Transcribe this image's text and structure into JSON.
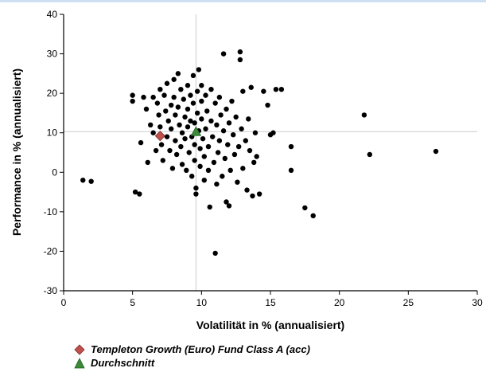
{
  "chart_data": {
    "type": "scatter",
    "title": "",
    "xlabel": "Volatilität in % (annualisiert)",
    "ylabel": "Performance in % (annualisiert)",
    "xlim": [
      0,
      30
    ],
    "ylim": [
      -30,
      40
    ],
    "xticks": [
      0,
      5,
      10,
      15,
      20,
      25,
      30
    ],
    "yticks": [
      -30,
      -20,
      -10,
      0,
      10,
      20,
      30,
      40
    ],
    "xtick_labels": [
      "0",
      "5",
      "10",
      "15",
      "20",
      "25",
      "30"
    ],
    "ytick_labels": [
      "-30",
      "-20",
      "-10",
      "0",
      "10",
      "20",
      "30",
      "40"
    ],
    "grid": false,
    "reference_lines": {
      "x": 9.6,
      "y": 10.3
    },
    "legend_position": "bottom-left",
    "colors": {
      "points": "#000000",
      "fund": "#c0504d",
      "average": "#3a8a3a",
      "reference_line": "#cccccc"
    },
    "series": [
      {
        "name": "",
        "points": [
          [
            1.4,
            -2.0
          ],
          [
            2.0,
            -2.3
          ],
          [
            5.0,
            18.0
          ],
          [
            5.0,
            19.5
          ],
          [
            5.2,
            -5.0
          ],
          [
            5.5,
            -5.5
          ],
          [
            5.6,
            7.5
          ],
          [
            5.8,
            19.0
          ],
          [
            6.0,
            16.0
          ],
          [
            6.1,
            2.5
          ],
          [
            6.3,
            12.0
          ],
          [
            6.5,
            19.0
          ],
          [
            6.5,
            10.0
          ],
          [
            6.7,
            5.5
          ],
          [
            6.8,
            17.5
          ],
          [
            6.9,
            14.5
          ],
          [
            7.0,
            21.0
          ],
          [
            7.0,
            11.5
          ],
          [
            7.1,
            7.0
          ],
          [
            7.2,
            3.0
          ],
          [
            7.3,
            19.5
          ],
          [
            7.4,
            15.5
          ],
          [
            7.5,
            22.5
          ],
          [
            7.5,
            9.0
          ],
          [
            7.6,
            13.0
          ],
          [
            7.7,
            5.5
          ],
          [
            7.8,
            17.0
          ],
          [
            7.8,
            11.0
          ],
          [
            7.9,
            1.0
          ],
          [
            8.0,
            23.5
          ],
          [
            8.0,
            19.0
          ],
          [
            8.1,
            14.5
          ],
          [
            8.1,
            8.0
          ],
          [
            8.2,
            4.5
          ],
          [
            8.3,
            25.0
          ],
          [
            8.3,
            16.5
          ],
          [
            8.4,
            12.0
          ],
          [
            8.5,
            21.0
          ],
          [
            8.5,
            6.5
          ],
          [
            8.6,
            10.0
          ],
          [
            8.6,
            2.0
          ],
          [
            8.7,
            18.5
          ],
          [
            8.8,
            14.0
          ],
          [
            8.8,
            8.5
          ],
          [
            8.9,
            0.5
          ],
          [
            9.0,
            22.0
          ],
          [
            9.0,
            16.0
          ],
          [
            9.0,
            11.5
          ],
          [
            9.1,
            5.0
          ],
          [
            9.2,
            19.5
          ],
          [
            9.2,
            13.0
          ],
          [
            9.3,
            9.0
          ],
          [
            9.3,
            -1.0
          ],
          [
            9.4,
            24.5
          ],
          [
            9.4,
            17.5
          ],
          [
            9.5,
            12.5
          ],
          [
            9.5,
            7.0
          ],
          [
            9.5,
            3.0
          ],
          [
            9.6,
            -4.0
          ],
          [
            9.6,
            -5.5
          ],
          [
            9.7,
            20.5
          ],
          [
            9.7,
            15.0
          ],
          [
            9.8,
            10.5
          ],
          [
            9.8,
            26.0
          ],
          [
            9.9,
            6.0
          ],
          [
            9.9,
            1.5
          ],
          [
            10.0,
            22.0
          ],
          [
            10.0,
            18.0
          ],
          [
            10.0,
            13.5
          ],
          [
            10.1,
            8.5
          ],
          [
            10.2,
            4.0
          ],
          [
            10.2,
            -2.0
          ],
          [
            10.3,
            19.5
          ],
          [
            10.3,
            11.0
          ],
          [
            10.4,
            15.5
          ],
          [
            10.5,
            6.5
          ],
          [
            10.5,
            0.5
          ],
          [
            10.6,
            -8.8
          ],
          [
            10.7,
            21.0
          ],
          [
            10.7,
            13.0
          ],
          [
            10.8,
            9.0
          ],
          [
            10.9,
            2.5
          ],
          [
            11.0,
            17.5
          ],
          [
            11.0,
            -20.5
          ],
          [
            11.1,
            12.0
          ],
          [
            11.1,
            -3.0
          ],
          [
            11.2,
            5.0
          ],
          [
            11.3,
            19.0
          ],
          [
            11.3,
            8.0
          ],
          [
            11.4,
            14.5
          ],
          [
            11.5,
            -1.0
          ],
          [
            11.6,
            10.5
          ],
          [
            11.6,
            30.0
          ],
          [
            11.7,
            3.5
          ],
          [
            11.8,
            16.0
          ],
          [
            11.8,
            -7.5
          ],
          [
            11.9,
            7.0
          ],
          [
            12.0,
            12.5
          ],
          [
            12.0,
            -8.5
          ],
          [
            12.1,
            0.5
          ],
          [
            12.2,
            18.0
          ],
          [
            12.3,
            9.5
          ],
          [
            12.4,
            4.5
          ],
          [
            12.5,
            14.0
          ],
          [
            12.6,
            -2.5
          ],
          [
            12.7,
            6.5
          ],
          [
            12.8,
            30.5
          ],
          [
            12.8,
            28.5
          ],
          [
            12.9,
            11.0
          ],
          [
            13.0,
            20.5
          ],
          [
            13.0,
            1.0
          ],
          [
            13.2,
            8.0
          ],
          [
            13.3,
            -4.5
          ],
          [
            13.4,
            13.5
          ],
          [
            13.5,
            5.5
          ],
          [
            13.6,
            21.5
          ],
          [
            13.7,
            -6.0
          ],
          [
            13.8,
            2.5
          ],
          [
            13.9,
            10.0
          ],
          [
            14.0,
            4.0
          ],
          [
            14.2,
            -5.5
          ],
          [
            14.5,
            20.5
          ],
          [
            14.8,
            17.0
          ],
          [
            15.0,
            9.5
          ],
          [
            15.2,
            10.0
          ],
          [
            15.4,
            21.0
          ],
          [
            15.8,
            21.0
          ],
          [
            16.5,
            0.5
          ],
          [
            16.5,
            6.5
          ],
          [
            17.5,
            -9.0
          ],
          [
            18.1,
            -11.0
          ],
          [
            21.8,
            14.5
          ],
          [
            22.2,
            4.5
          ],
          [
            27.0,
            5.3
          ]
        ]
      },
      {
        "name": "Templeton Growth (Euro) Fund Class A (acc)",
        "points": [
          [
            7.0,
            9.2
          ]
        ]
      },
      {
        "name": "Durchschnitt",
        "points": [
          [
            9.6,
            10.3
          ]
        ]
      }
    ]
  }
}
